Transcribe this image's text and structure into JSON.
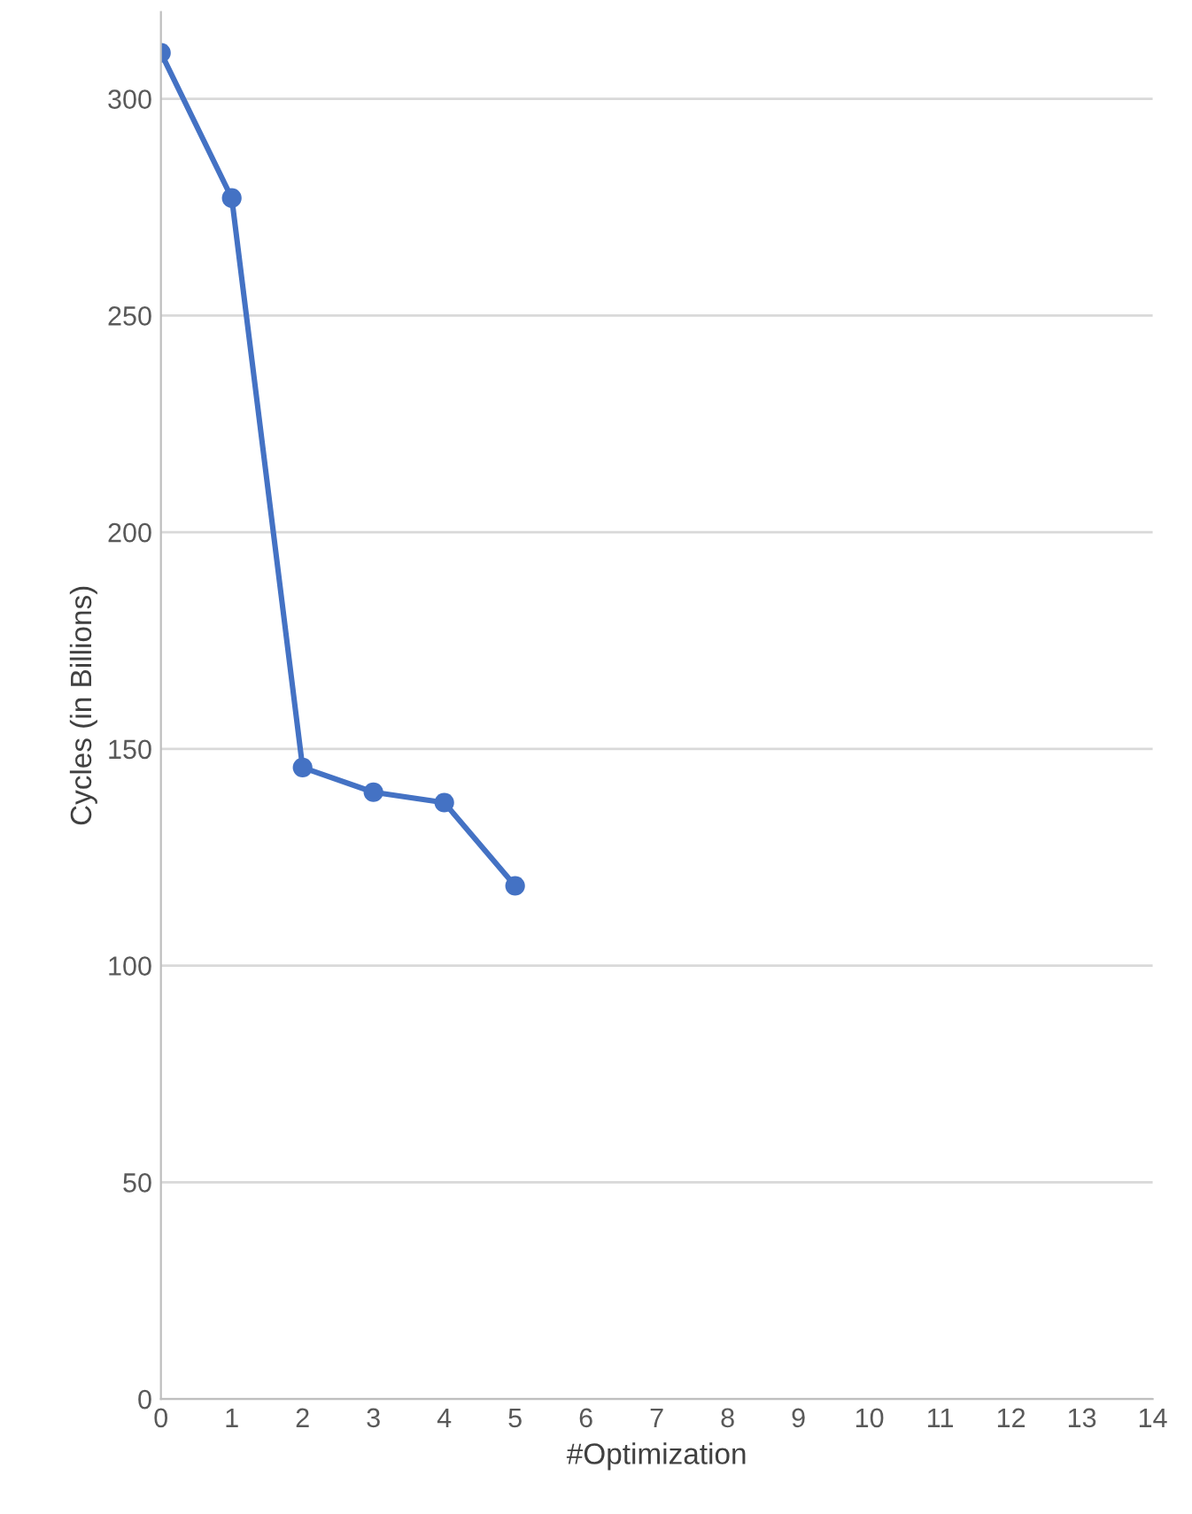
{
  "chart_data": {
    "type": "line",
    "xlabel": "#Optimization",
    "ylabel": "Cycles (in Billions)",
    "x": [
      0,
      1,
      2,
      3,
      4,
      5
    ],
    "series": [
      {
        "color": "#4472c4",
        "values": [
          310.6,
          277.1,
          145.7,
          140.0,
          137.6,
          118.4
        ]
      }
    ],
    "xlim": [
      0,
      14
    ],
    "xticks": [
      0,
      1,
      2,
      3,
      4,
      5,
      6,
      7,
      8,
      9,
      10,
      11,
      12,
      13,
      14
    ],
    "ylim": [
      0,
      320
    ],
    "yticks": [
      0,
      50,
      100,
      150,
      200,
      250,
      300
    ],
    "grid": "y",
    "marker": "circle",
    "line_style": "solid"
  }
}
